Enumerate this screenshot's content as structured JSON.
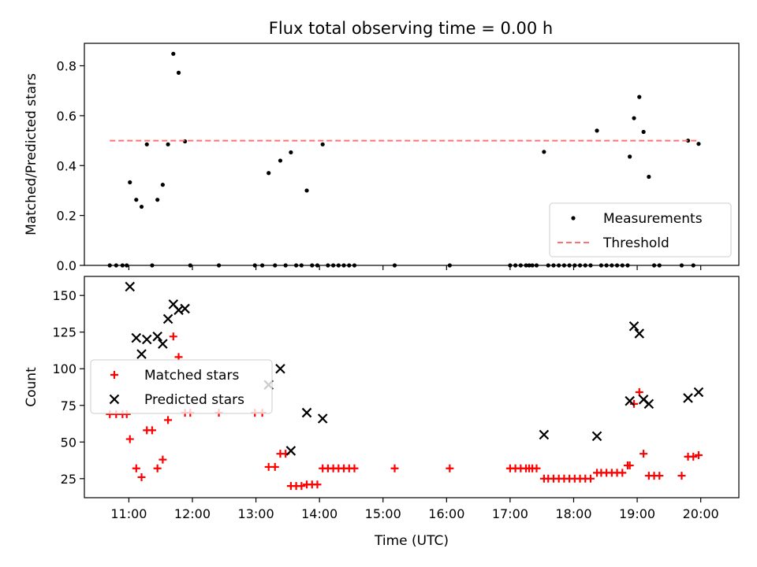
{
  "figure": {
    "title": "Flux total observing time = 0.00 h"
  },
  "chart_data": [
    {
      "type": "scatter",
      "ylabel": "Matched/Predicted stars",
      "xlim": [
        "10:18",
        "20:36"
      ],
      "ylim": [
        0,
        0.89
      ],
      "yticks": [
        "0.0",
        "0.2",
        "0.4",
        "0.6",
        "0.8"
      ],
      "grid": false,
      "legend": "lower right",
      "series": [
        {
          "name": "Measurements",
          "marker": "dot",
          "color": "#000000",
          "points": [
            [
              "10:42",
              0
            ],
            [
              "10:48",
              0
            ],
            [
              "10:54",
              0
            ],
            [
              "10:58",
              0
            ],
            [
              "11:01",
              0.333
            ],
            [
              "11:07",
              0.263
            ],
            [
              "11:12",
              0.235
            ],
            [
              "11:17",
              0.485
            ],
            [
              "11:22",
              0
            ],
            [
              "11:27",
              0.263
            ],
            [
              "11:32",
              0.323
            ],
            [
              "11:37",
              0.485
            ],
            [
              "11:42",
              0.848
            ],
            [
              "11:47",
              0.772
            ],
            [
              "11:53",
              0.497
            ],
            [
              "11:58",
              0
            ],
            [
              "12:25",
              0
            ],
            [
              "12:59",
              0
            ],
            [
              "13:06",
              0
            ],
            [
              "13:12",
              0.37
            ],
            [
              "13:18",
              0
            ],
            [
              "13:23",
              0.42
            ],
            [
              "13:28",
              0
            ],
            [
              "13:33",
              0.453
            ],
            [
              "13:38",
              0
            ],
            [
              "13:43",
              0
            ],
            [
              "13:48",
              0.3
            ],
            [
              "13:53",
              0
            ],
            [
              "13:58",
              0
            ],
            [
              "14:03",
              0.485
            ],
            [
              "14:08",
              0
            ],
            [
              "14:13",
              0
            ],
            [
              "14:18",
              0
            ],
            [
              "14:23",
              0
            ],
            [
              "14:28",
              0
            ],
            [
              "14:33",
              0
            ],
            [
              "15:11",
              0
            ],
            [
              "16:03",
              0
            ],
            [
              "17:00",
              0
            ],
            [
              "17:05",
              0
            ],
            [
              "17:10",
              0
            ],
            [
              "17:15",
              0
            ],
            [
              "17:18",
              0
            ],
            [
              "17:21",
              0
            ],
            [
              "17:25",
              0
            ],
            [
              "17:32",
              0.455
            ],
            [
              "17:36",
              0
            ],
            [
              "17:41",
              0
            ],
            [
              "17:46",
              0
            ],
            [
              "17:51",
              0
            ],
            [
              "17:56",
              0
            ],
            [
              "18:01",
              0
            ],
            [
              "18:06",
              0
            ],
            [
              "18:11",
              0
            ],
            [
              "18:16",
              0
            ],
            [
              "18:22",
              0.54
            ],
            [
              "18:26",
              0
            ],
            [
              "18:31",
              0
            ],
            [
              "18:36",
              0
            ],
            [
              "18:41",
              0
            ],
            [
              "18:46",
              0
            ],
            [
              "18:51",
              0
            ],
            [
              "18:53",
              0.436
            ],
            [
              "18:57",
              0.59
            ],
            [
              "19:02",
              0.675
            ],
            [
              "19:06",
              0.535
            ],
            [
              "19:11",
              0.355
            ],
            [
              "19:16",
              0
            ],
            [
              "19:21",
              0
            ],
            [
              "19:42",
              0
            ],
            [
              "19:48",
              0.5
            ],
            [
              "19:53",
              0
            ],
            [
              "19:58",
              0.487
            ]
          ]
        },
        {
          "name": "Threshold",
          "style": "dashed",
          "color": "#ff7070",
          "points": [
            [
              "10:42",
              0.5
            ],
            [
              "19:58",
              0.5
            ]
          ]
        }
      ]
    },
    {
      "type": "scatter",
      "xlabel": "Time (UTC)",
      "ylabel": "Count",
      "xlim": [
        "10:18",
        "20:36"
      ],
      "ylim": [
        12,
        163
      ],
      "yticks": [
        "25",
        "50",
        "75",
        "100",
        "125",
        "150"
      ],
      "xticks": [
        "11:00",
        "12:00",
        "13:00",
        "14:00",
        "15:00",
        "16:00",
        "17:00",
        "18:00",
        "19:00",
        "20:00"
      ],
      "grid": false,
      "legend": "center left",
      "series": [
        {
          "name": "Matched stars",
          "marker": "plus",
          "color": "#ff0000",
          "points": [
            [
              "10:42",
              69
            ],
            [
              "10:48",
              69
            ],
            [
              "10:54",
              69
            ],
            [
              "10:58",
              69
            ],
            [
              "11:01",
              52
            ],
            [
              "11:07",
              32
            ],
            [
              "11:12",
              26
            ],
            [
              "11:17",
              58
            ],
            [
              "11:22",
              58
            ],
            [
              "11:27",
              32
            ],
            [
              "11:32",
              38
            ],
            [
              "11:37",
              65
            ],
            [
              "11:42",
              122
            ],
            [
              "11:47",
              108
            ],
            [
              "11:53",
              70
            ],
            [
              "11:58",
              70
            ],
            [
              "12:25",
              70
            ],
            [
              "12:59",
              70
            ],
            [
              "13:06",
              70
            ],
            [
              "13:12",
              33
            ],
            [
              "13:18",
              33
            ],
            [
              "13:23",
              42
            ],
            [
              "13:28",
              42
            ],
            [
              "13:33",
              20
            ],
            [
              "13:38",
              20
            ],
            [
              "13:43",
              20
            ],
            [
              "13:48",
              21
            ],
            [
              "13:53",
              21
            ],
            [
              "13:58",
              21
            ],
            [
              "14:03",
              32
            ],
            [
              "14:08",
              32
            ],
            [
              "14:13",
              32
            ],
            [
              "14:18",
              32
            ],
            [
              "14:23",
              32
            ],
            [
              "14:28",
              32
            ],
            [
              "14:33",
              32
            ],
            [
              "15:11",
              32
            ],
            [
              "16:03",
              32
            ],
            [
              "17:00",
              32
            ],
            [
              "17:05",
              32
            ],
            [
              "17:10",
              32
            ],
            [
              "17:15",
              32
            ],
            [
              "17:18",
              32
            ],
            [
              "17:21",
              32
            ],
            [
              "17:25",
              32
            ],
            [
              "17:32",
              25
            ],
            [
              "17:36",
              25
            ],
            [
              "17:41",
              25
            ],
            [
              "17:46",
              25
            ],
            [
              "17:51",
              25
            ],
            [
              "17:56",
              25
            ],
            [
              "18:01",
              25
            ],
            [
              "18:06",
              25
            ],
            [
              "18:11",
              25
            ],
            [
              "18:16",
              25
            ],
            [
              "18:22",
              29
            ],
            [
              "18:26",
              29
            ],
            [
              "18:31",
              29
            ],
            [
              "18:36",
              29
            ],
            [
              "18:41",
              29
            ],
            [
              "18:46",
              29
            ],
            [
              "18:51",
              34
            ],
            [
              "18:53",
              34
            ],
            [
              "18:57",
              76
            ],
            [
              "19:02",
              84
            ],
            [
              "19:06",
              42
            ],
            [
              "19:11",
              27
            ],
            [
              "19:16",
              27
            ],
            [
              "19:21",
              27
            ],
            [
              "19:42",
              27
            ],
            [
              "19:48",
              40
            ],
            [
              "19:53",
              40
            ],
            [
              "19:58",
              41
            ]
          ]
        },
        {
          "name": "Predicted stars",
          "marker": "x",
          "color": "#000000",
          "points": [
            [
              "11:01",
              156
            ],
            [
              "11:07",
              121
            ],
            [
              "11:12",
              110
            ],
            [
              "11:17",
              120
            ],
            [
              "11:27",
              122
            ],
            [
              "11:32",
              117
            ],
            [
              "11:37",
              134
            ],
            [
              "11:42",
              144
            ],
            [
              "11:47",
              140
            ],
            [
              "11:53",
              141
            ],
            [
              "13:12",
              89
            ],
            [
              "13:23",
              100
            ],
            [
              "13:33",
              44
            ],
            [
              "13:48",
              70
            ],
            [
              "14:03",
              66
            ],
            [
              "17:32",
              55
            ],
            [
              "18:22",
              54
            ],
            [
              "18:53",
              78
            ],
            [
              "18:57",
              129
            ],
            [
              "19:02",
              124
            ],
            [
              "19:06",
              79
            ],
            [
              "19:11",
              76
            ],
            [
              "19:48",
              80
            ],
            [
              "19:58",
              84
            ]
          ]
        }
      ]
    }
  ]
}
